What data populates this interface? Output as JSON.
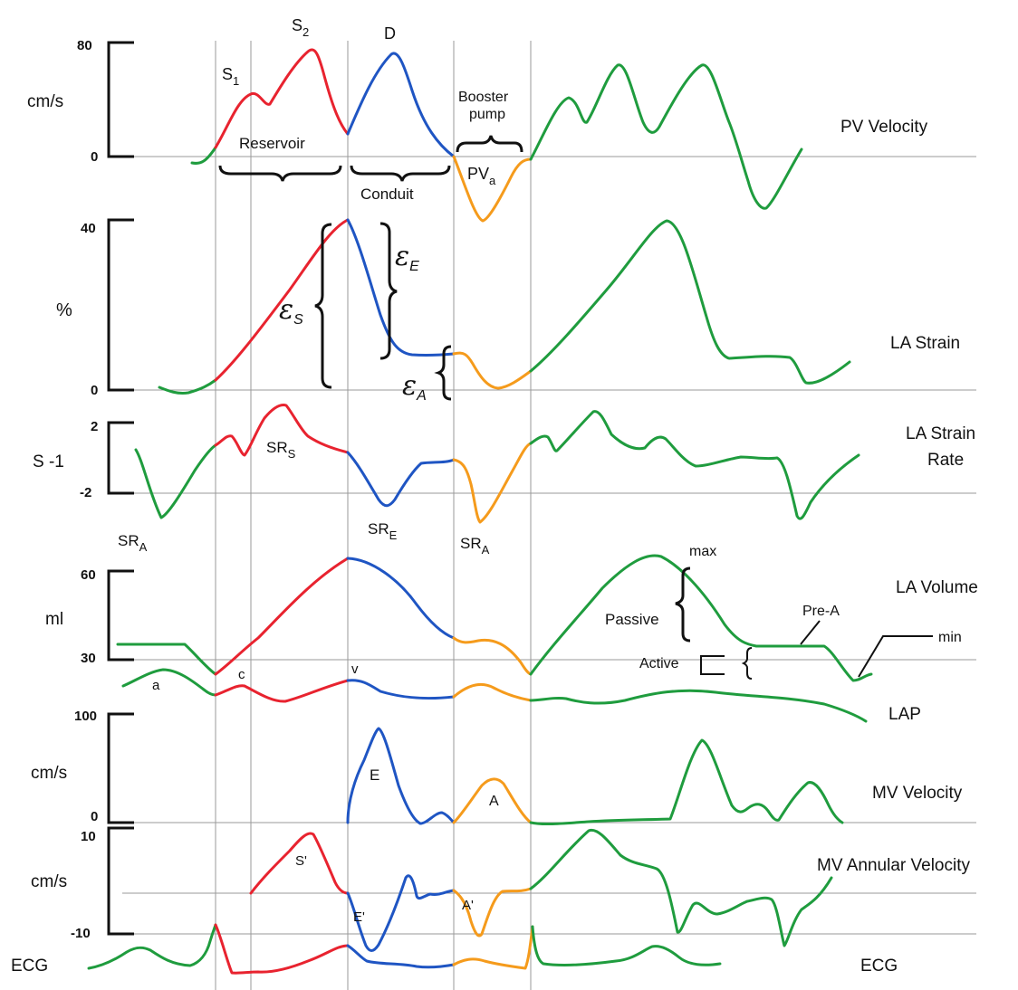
{
  "panels": {
    "pv_velocity": {
      "title": "PV Velocity",
      "unit": "cm/s",
      "ticks": [
        "80",
        "0"
      ],
      "labels": {
        "s1": "S",
        "s1_sub": "1",
        "s2": "S",
        "s2_sub": "2",
        "d": "D",
        "pva": "PV",
        "pva_sub": "a"
      },
      "phases": {
        "reservoir": "Reservoir",
        "conduit": "Conduit",
        "booster_line1": "Booster",
        "booster_line2": "pump"
      }
    },
    "la_strain": {
      "title": "LA Strain",
      "unit": "%",
      "ticks": [
        "40",
        "0"
      ],
      "labels": {
        "eps_s": "ε",
        "eps_s_sub": "S",
        "eps_e": "ε",
        "eps_e_sub": "E",
        "eps_a": "ε",
        "eps_a_sub": "A"
      }
    },
    "la_strain_rate": {
      "title_line1": "LA Strain",
      "title_line2": "Rate",
      "unit": "S -1",
      "ticks": [
        "2",
        "-2"
      ],
      "labels": {
        "srs": "SR",
        "srs_sub": "S",
        "sre": "SR",
        "sre_sub": "E",
        "sra": "SR",
        "sra_sub": "A",
        "sra_left": "SR",
        "sra_left_sub": "A"
      }
    },
    "la_volume": {
      "title": "LA Volume",
      "unit": "ml",
      "ticks": [
        "60",
        "30"
      ],
      "labels": {
        "max": "max",
        "passive": "Passive",
        "pre_a": "Pre-A",
        "active": "Active",
        "min": "min"
      }
    },
    "lap": {
      "title": "LAP",
      "labels": {
        "a": "a",
        "c": "c",
        "v": "v"
      }
    },
    "mv_velocity": {
      "title": "MV Velocity",
      "unit": "cm/s",
      "ticks": [
        "100",
        "0"
      ],
      "labels": {
        "e": "E",
        "a": "A"
      }
    },
    "mv_annular": {
      "title": "MV Annular Velocity",
      "unit": "cm/s",
      "ticks": [
        "10",
        "-10"
      ],
      "labels": {
        "s_prime": "S'",
        "e_prime": "E'",
        "a_prime": "A'"
      }
    },
    "ecg": {
      "left_label": "ECG",
      "right_label": "ECG"
    }
  },
  "colors": {
    "reservoir_phase": "#e8232f",
    "conduit_phase": "#1f55c3",
    "booster_phase": "#f59b1c",
    "other_cycle": "#1f9c3e"
  }
}
